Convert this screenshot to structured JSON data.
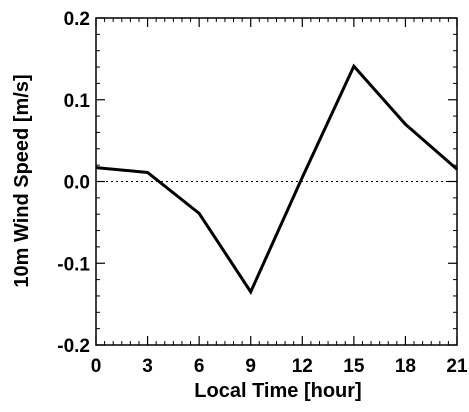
{
  "chart_data": {
    "type": "line",
    "title": "",
    "xlabel": "Local Time [hour]",
    "ylabel": "10m Wind Speed [m/s]",
    "xlim": [
      0,
      21
    ],
    "ylim": [
      -0.2,
      0.2
    ],
    "xticks": [
      0,
      3,
      6,
      9,
      12,
      15,
      18,
      21
    ],
    "xtick_labels": [
      "0",
      "3",
      "6",
      "9",
      "12",
      "15",
      "18",
      "21"
    ],
    "yticks": [
      -0.2,
      -0.1,
      0.0,
      0.1,
      0.2
    ],
    "ytick_labels": [
      "-0.2",
      "-0.1",
      "0.0",
      "0.1",
      "0.2"
    ],
    "grid": false,
    "reference_line": {
      "y": 0.0,
      "style": "dotted"
    },
    "series": [
      {
        "x": [
          0,
          3,
          6,
          9,
          12,
          15,
          18,
          21
        ],
        "y": [
          0.017,
          0.011,
          -0.039,
          -0.135,
          0.005,
          0.141,
          0.07,
          0.015
        ],
        "color": "#000000"
      }
    ]
  }
}
